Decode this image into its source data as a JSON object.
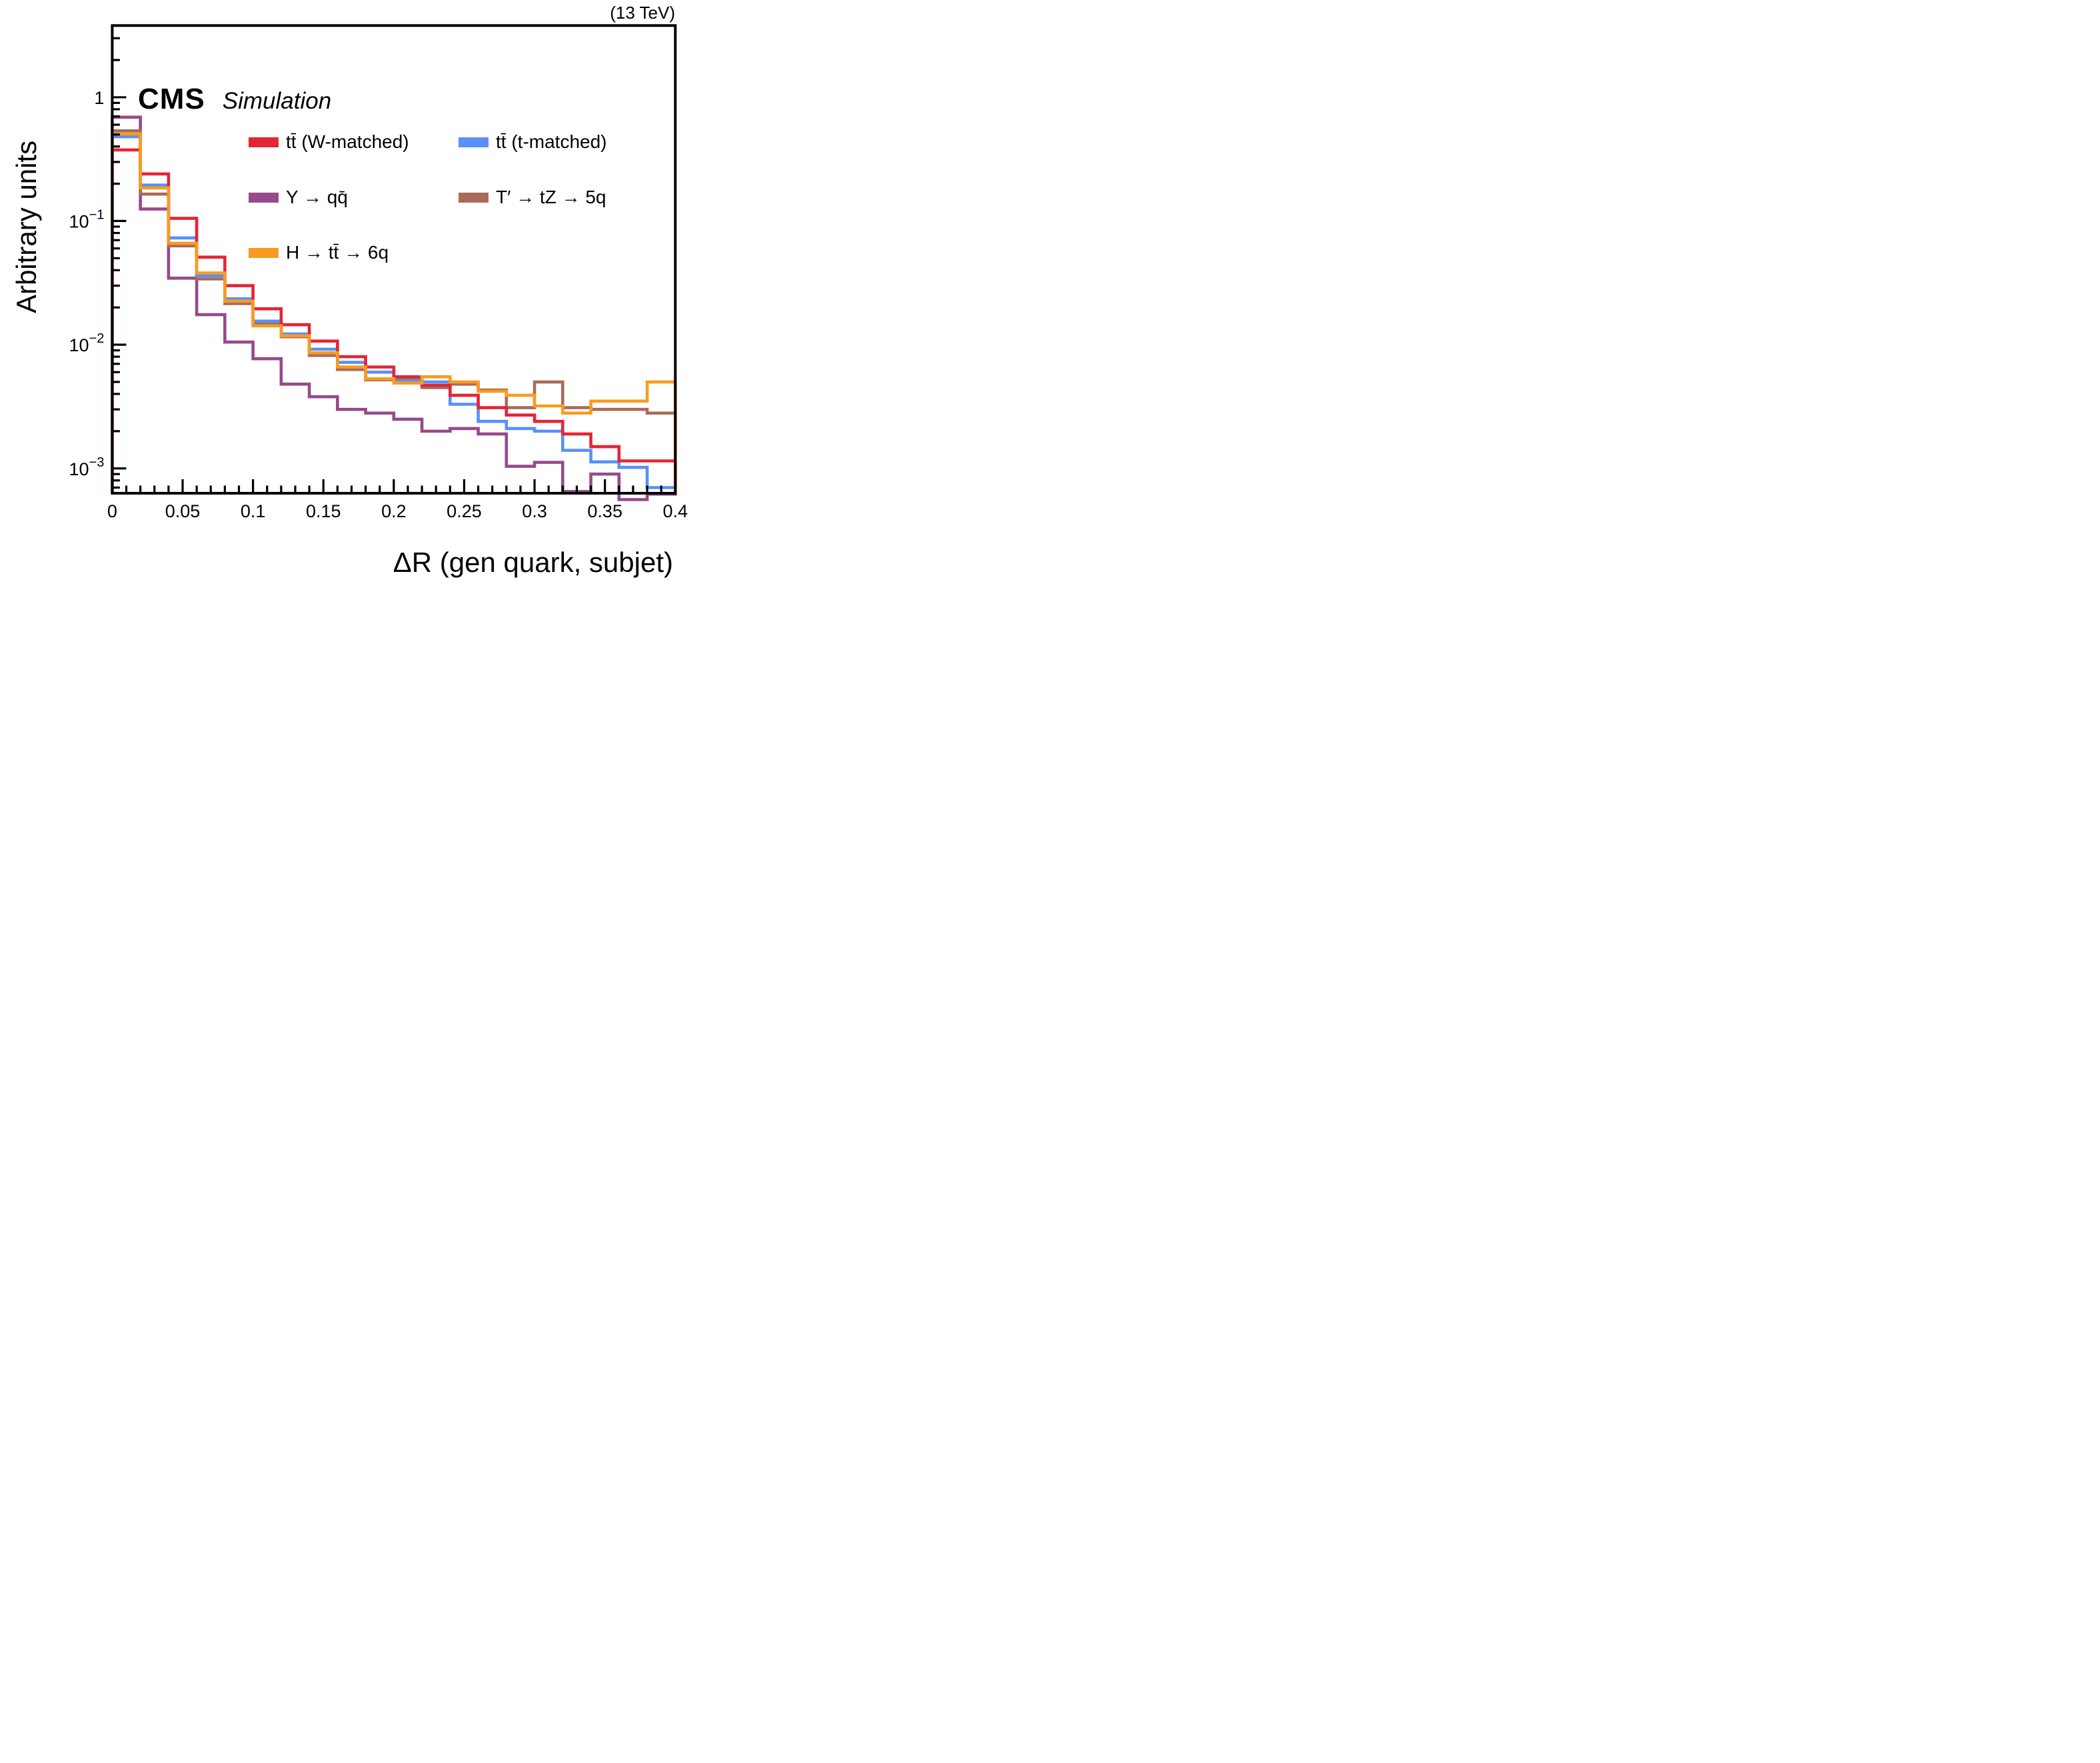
{
  "header": {
    "cms": "CMS",
    "simulation": "Simulation",
    "energy": "(13 TeV)"
  },
  "axes": {
    "x_title": "ΔR (gen quark, subjet)",
    "y_title": "Arbitrary units",
    "x_min": 0,
    "x_max": 0.4,
    "x_major_step": 0.05,
    "x_minor_step": 0.01,
    "x_tick_labels": [
      "0",
      "0.05",
      "0.1",
      "0.15",
      "0.2",
      "0.25",
      "0.3",
      "0.35",
      "0.4"
    ],
    "y_scale": "log",
    "y_min": 0.00063,
    "y_max": 3.8,
    "y_major_ticks": [
      {
        "value": 1,
        "label": "1"
      },
      {
        "value": 0.1,
        "base": "10",
        "exp": "−1"
      },
      {
        "value": 0.01,
        "base": "10",
        "exp": "−2"
      },
      {
        "value": 0.001,
        "base": "10",
        "exp": "−3"
      }
    ]
  },
  "chart_data": {
    "type": "line",
    "style": "step-histogram",
    "title": "CMS Simulation",
    "xlabel": "ΔR (gen quark, subjet)",
    "ylabel": "Arbitrary units",
    "x_start": 0,
    "bin_width": 0.02,
    "n_bins": 20,
    "xlim": [
      0,
      0.4
    ],
    "ylim": [
      0.00063,
      3.8
    ],
    "grid": false,
    "series": [
      {
        "name": "y-qq",
        "label": "Y → qq̄",
        "color": "#964a8b",
        "values": [
          0.69,
          0.125,
          0.0345,
          0.0175,
          0.0105,
          0.0077,
          0.0048,
          0.0038,
          0.003,
          0.0028,
          0.0025,
          0.002,
          0.0021,
          0.0019,
          0.00104,
          0.00112,
          0.00065,
          0.0009,
          0.00056,
          0.00062
        ]
      },
      {
        "name": "tprime-tz-5q",
        "label": "T′ → tZ → 5q",
        "color": "#a96b59",
        "values": [
          0.535,
          0.165,
          0.063,
          0.034,
          0.0215,
          0.0148,
          0.0116,
          0.0082,
          0.0063,
          0.0052,
          0.0052,
          0.0045,
          0.0048,
          0.0043,
          0.0031,
          0.005,
          0.0031,
          0.003,
          0.003,
          0.0028
        ]
      },
      {
        "name": "ttbar-t-matched",
        "label": "tt̄ (t-matched)",
        "color": "#5790fc",
        "values": [
          0.48,
          0.195,
          0.073,
          0.036,
          0.0235,
          0.0155,
          0.0122,
          0.0092,
          0.0072,
          0.006,
          0.0051,
          0.005,
          0.0033,
          0.0024,
          0.0021,
          0.002,
          0.0014,
          0.00113,
          0.00102,
          0.0007
        ]
      },
      {
        "name": "ttbar-w-matched",
        "label": "tt̄ (W-matched)",
        "color": "#e42536",
        "values": [
          0.375,
          0.24,
          0.105,
          0.051,
          0.03,
          0.0195,
          0.0145,
          0.0107,
          0.008,
          0.0066,
          0.0055,
          0.0047,
          0.0039,
          0.0031,
          0.0027,
          0.0024,
          0.0019,
          0.0015,
          0.00115,
          0.00115
        ]
      },
      {
        "name": "h-tt-6q",
        "label": "H → tt̄ → 6q",
        "color": "#f89c20",
        "values": [
          0.505,
          0.185,
          0.066,
          0.038,
          0.0225,
          0.0142,
          0.0118,
          0.0086,
          0.0066,
          0.0053,
          0.0049,
          0.0055,
          0.005,
          0.0042,
          0.0039,
          0.0032,
          0.0028,
          0.0035,
          0.0035,
          0.005
        ]
      }
    ]
  },
  "legend": {
    "entries": [
      {
        "label": "tt̄ (W-matched)",
        "color": "#e42536",
        "column": 1,
        "row": 1
      },
      {
        "label": "tt̄ (t-matched)",
        "color": "#5790fc",
        "column": 2,
        "row": 1
      },
      {
        "label": "Y → qq̄",
        "color": "#964a8b",
        "column": 1,
        "row": 2
      },
      {
        "label": "T′ → tZ → 5q",
        "color": "#a96b59",
        "column": 2,
        "row": 2
      },
      {
        "label": "H → tt̄ → 6q",
        "color": "#f89c20",
        "column": 1,
        "row": 3
      }
    ]
  }
}
